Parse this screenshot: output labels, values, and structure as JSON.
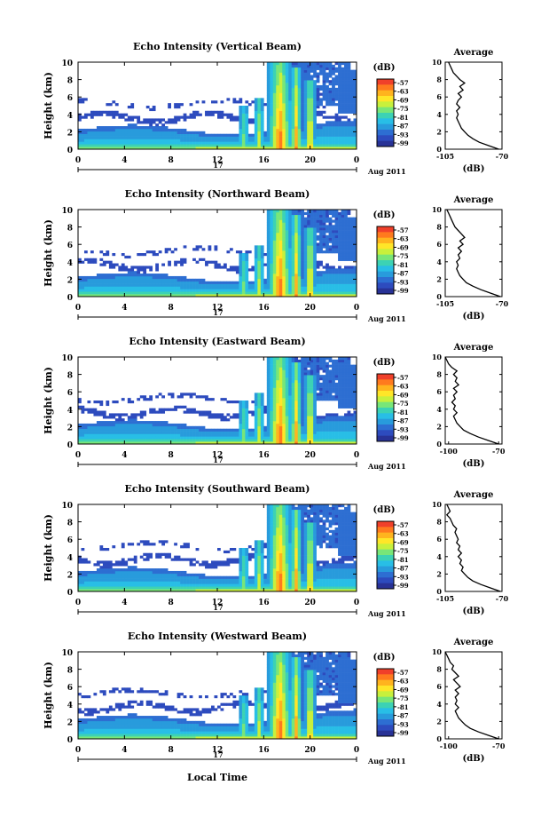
{
  "figure": {
    "x_axis_title": "Local Time",
    "date_text": "Aug 2011",
    "colorbar_unit": "(dB)",
    "colorbar_ticks": [
      "-57",
      "-63",
      "-69",
      "-75",
      "-81",
      "-87",
      "-93",
      "-99"
    ],
    "colorbar_colors": [
      "#f0402a",
      "#ff7a1e",
      "#ffb41e",
      "#ffe628",
      "#c8f03c",
      "#78e678",
      "#3cd2b4",
      "#28bee6",
      "#289bdc",
      "#2d6ed2",
      "#2d4bbe",
      "#283296"
    ]
  },
  "chart_data": [
    {
      "type": "heatmap",
      "title": "Echo Intensity (Vertical Beam)",
      "ylabel": "Height (km)",
      "x_ticks": [
        "0",
        "4",
        "8",
        "12",
        "16",
        "20",
        "0"
      ],
      "y_ticks": [
        "0",
        "2",
        "4",
        "6",
        "8",
        "10"
      ],
      "xlim": [
        0,
        24
      ],
      "ylim": [
        0,
        10
      ],
      "day_label": "17",
      "clim": [
        -99,
        -57
      ],
      "profile": {
        "title": "Average",
        "xlabel": "(dB)",
        "x_ticks": [
          "-105",
          "-70"
        ],
        "y_ticks": [
          "0",
          "2",
          "4",
          "6",
          "8",
          "10"
        ],
        "xlim": [
          -105,
          -70
        ],
        "ylim": [
          0,
          10
        ],
        "points": [
          [
            -72,
            0
          ],
          [
            -78,
            0.4
          ],
          [
            -84,
            0.8
          ],
          [
            -88,
            1.2
          ],
          [
            -91,
            1.6
          ],
          [
            -93,
            2.0
          ],
          [
            -95,
            2.4
          ],
          [
            -96,
            2.8
          ],
          [
            -97,
            3.2
          ],
          [
            -98,
            3.6
          ],
          [
            -97,
            4.0
          ],
          [
            -98,
            4.4
          ],
          [
            -96,
            4.8
          ],
          [
            -98,
            5.2
          ],
          [
            -97,
            5.6
          ],
          [
            -95,
            6.0
          ],
          [
            -97,
            6.4
          ],
          [
            -94,
            6.8
          ],
          [
            -96,
            7.2
          ],
          [
            -93,
            7.6
          ],
          [
            -96,
            8.0
          ],
          [
            -98,
            8.4
          ],
          [
            -100,
            8.8
          ],
          [
            -101,
            9.2
          ],
          [
            -102,
            9.6
          ],
          [
            -103,
            10
          ]
        ]
      }
    },
    {
      "type": "heatmap",
      "title": "Echo Intensity (Northward Beam)",
      "ylabel": "Height (km)",
      "x_ticks": [
        "0",
        "4",
        "8",
        "12",
        "16",
        "20",
        "0"
      ],
      "y_ticks": [
        "0",
        "2",
        "4",
        "6",
        "8",
        "10"
      ],
      "xlim": [
        0,
        24
      ],
      "ylim": [
        0,
        10
      ],
      "day_label": "17",
      "clim": [
        -99,
        -57
      ],
      "profile": {
        "title": "Average",
        "xlabel": "(dB)",
        "x_ticks": [
          "-105",
          "-70"
        ],
        "y_ticks": [
          "0",
          "2",
          "4",
          "6",
          "8",
          "10"
        ],
        "xlim": [
          -105,
          -70
        ],
        "ylim": [
          0,
          10
        ],
        "points": [
          [
            -71,
            0
          ],
          [
            -77,
            0.4
          ],
          [
            -83,
            0.8
          ],
          [
            -88,
            1.2
          ],
          [
            -92,
            1.6
          ],
          [
            -94,
            2.0
          ],
          [
            -96,
            2.4
          ],
          [
            -97,
            2.8
          ],
          [
            -98,
            3.2
          ],
          [
            -97,
            3.6
          ],
          [
            -98,
            4.0
          ],
          [
            -96,
            4.4
          ],
          [
            -97,
            4.8
          ],
          [
            -95,
            5.2
          ],
          [
            -97,
            5.6
          ],
          [
            -94,
            6.0
          ],
          [
            -96,
            6.4
          ],
          [
            -93,
            6.8
          ],
          [
            -95,
            7.2
          ],
          [
            -97,
            7.6
          ],
          [
            -99,
            8.0
          ],
          [
            -100,
            8.4
          ],
          [
            -101,
            8.8
          ],
          [
            -102,
            9.2
          ],
          [
            -103,
            9.6
          ],
          [
            -104,
            10
          ]
        ]
      }
    },
    {
      "type": "heatmap",
      "title": "Echo Intensity (Eastward Beam)",
      "ylabel": "Height (km)",
      "x_ticks": [
        "0",
        "4",
        "8",
        "12",
        "16",
        "20",
        "0"
      ],
      "y_ticks": [
        "0",
        "2",
        "4",
        "6",
        "8",
        "10"
      ],
      "xlim": [
        0,
        24
      ],
      "ylim": [
        0,
        10
      ],
      "day_label": "17",
      "clim": [
        -99,
        -57
      ],
      "profile": {
        "title": "Average",
        "xlabel": "(dB)",
        "x_ticks": [
          "-100",
          "-70"
        ],
        "y_ticks": [
          "0",
          "2",
          "4",
          "6",
          "8",
          "10"
        ],
        "xlim": [
          -102,
          -68
        ],
        "ylim": [
          0,
          10
        ],
        "points": [
          [
            -70,
            0
          ],
          [
            -76,
            0.4
          ],
          [
            -82,
            0.8
          ],
          [
            -87,
            1.2
          ],
          [
            -91,
            1.6
          ],
          [
            -93,
            2.0
          ],
          [
            -95,
            2.4
          ],
          [
            -96,
            2.8
          ],
          [
            -97,
            3.2
          ],
          [
            -95,
            3.6
          ],
          [
            -97,
            4.0
          ],
          [
            -96,
            4.4
          ],
          [
            -98,
            4.8
          ],
          [
            -96,
            5.2
          ],
          [
            -97,
            5.6
          ],
          [
            -95,
            6.0
          ],
          [
            -97,
            6.4
          ],
          [
            -94,
            6.8
          ],
          [
            -96,
            7.2
          ],
          [
            -95,
            7.6
          ],
          [
            -97,
            8.0
          ],
          [
            -95,
            8.4
          ],
          [
            -98,
            8.8
          ],
          [
            -100,
            9.2
          ],
          [
            -101,
            9.6
          ],
          [
            -102,
            10
          ]
        ]
      }
    },
    {
      "type": "heatmap",
      "title": "Echo Intensity (Southward Beam)",
      "ylabel": "Height (km)",
      "x_ticks": [
        "0",
        "4",
        "8",
        "12",
        "16",
        "20",
        "0"
      ],
      "y_ticks": [
        "0",
        "2",
        "4",
        "6",
        "8",
        "10"
      ],
      "xlim": [
        0,
        24
      ],
      "ylim": [
        0,
        10
      ],
      "day_label": "17",
      "clim": [
        -99,
        -57
      ],
      "profile": {
        "title": "Average",
        "xlabel": "(dB)",
        "x_ticks": [
          "-105",
          "-70"
        ],
        "y_ticks": [
          "0",
          "2",
          "4",
          "6",
          "8",
          "10"
        ],
        "xlim": [
          -105,
          -70
        ],
        "ylim": [
          0,
          10
        ],
        "points": [
          [
            -71,
            0
          ],
          [
            -77,
            0.4
          ],
          [
            -83,
            0.8
          ],
          [
            -88,
            1.2
          ],
          [
            -91,
            1.6
          ],
          [
            -93,
            2.0
          ],
          [
            -95,
            2.4
          ],
          [
            -94,
            2.8
          ],
          [
            -96,
            3.2
          ],
          [
            -95,
            3.6
          ],
          [
            -97,
            4.0
          ],
          [
            -95,
            4.4
          ],
          [
            -97,
            4.8
          ],
          [
            -96,
            5.2
          ],
          [
            -98,
            5.6
          ],
          [
            -97,
            6.0
          ],
          [
            -98,
            6.4
          ],
          [
            -99,
            6.8
          ],
          [
            -98,
            7.2
          ],
          [
            -100,
            7.6
          ],
          [
            -101,
            8.0
          ],
          [
            -102,
            8.4
          ],
          [
            -104,
            8.8
          ],
          [
            -102,
            9.2
          ],
          [
            -103,
            9.6
          ],
          [
            -104,
            10
          ]
        ]
      }
    },
    {
      "type": "heatmap",
      "title": "Echo Intensity (Westward Beam)",
      "ylabel": "Height (km)",
      "x_ticks": [
        "0",
        "4",
        "8",
        "12",
        "16",
        "20",
        "0"
      ],
      "y_ticks": [
        "0",
        "2",
        "4",
        "6",
        "8",
        "10"
      ],
      "xlim": [
        0,
        24
      ],
      "ylim": [
        0,
        10
      ],
      "day_label": "17",
      "clim": [
        -99,
        -57
      ],
      "profile": {
        "title": "Average",
        "xlabel": "(dB)",
        "x_ticks": [
          "-100",
          "-70"
        ],
        "y_ticks": [
          "0",
          "2",
          "4",
          "6",
          "8",
          "10"
        ],
        "xlim": [
          -102,
          -68
        ],
        "ylim": [
          0,
          10
        ],
        "points": [
          [
            -70,
            0
          ],
          [
            -76,
            0.4
          ],
          [
            -82,
            0.8
          ],
          [
            -87,
            1.2
          ],
          [
            -90,
            1.6
          ],
          [
            -92,
            2.0
          ],
          [
            -94,
            2.4
          ],
          [
            -95,
            2.8
          ],
          [
            -96,
            3.2
          ],
          [
            -94,
            3.6
          ],
          [
            -96,
            4.0
          ],
          [
            -95,
            4.4
          ],
          [
            -96,
            4.8
          ],
          [
            -94,
            5.2
          ],
          [
            -96,
            5.6
          ],
          [
            -93,
            6.0
          ],
          [
            -95,
            6.4
          ],
          [
            -97,
            6.8
          ],
          [
            -94,
            7.2
          ],
          [
            -96,
            7.6
          ],
          [
            -98,
            8.0
          ],
          [
            -97,
            8.4
          ],
          [
            -99,
            8.8
          ],
          [
            -100,
            9.2
          ],
          [
            -101,
            9.6
          ],
          [
            -102,
            10
          ]
        ]
      }
    }
  ]
}
